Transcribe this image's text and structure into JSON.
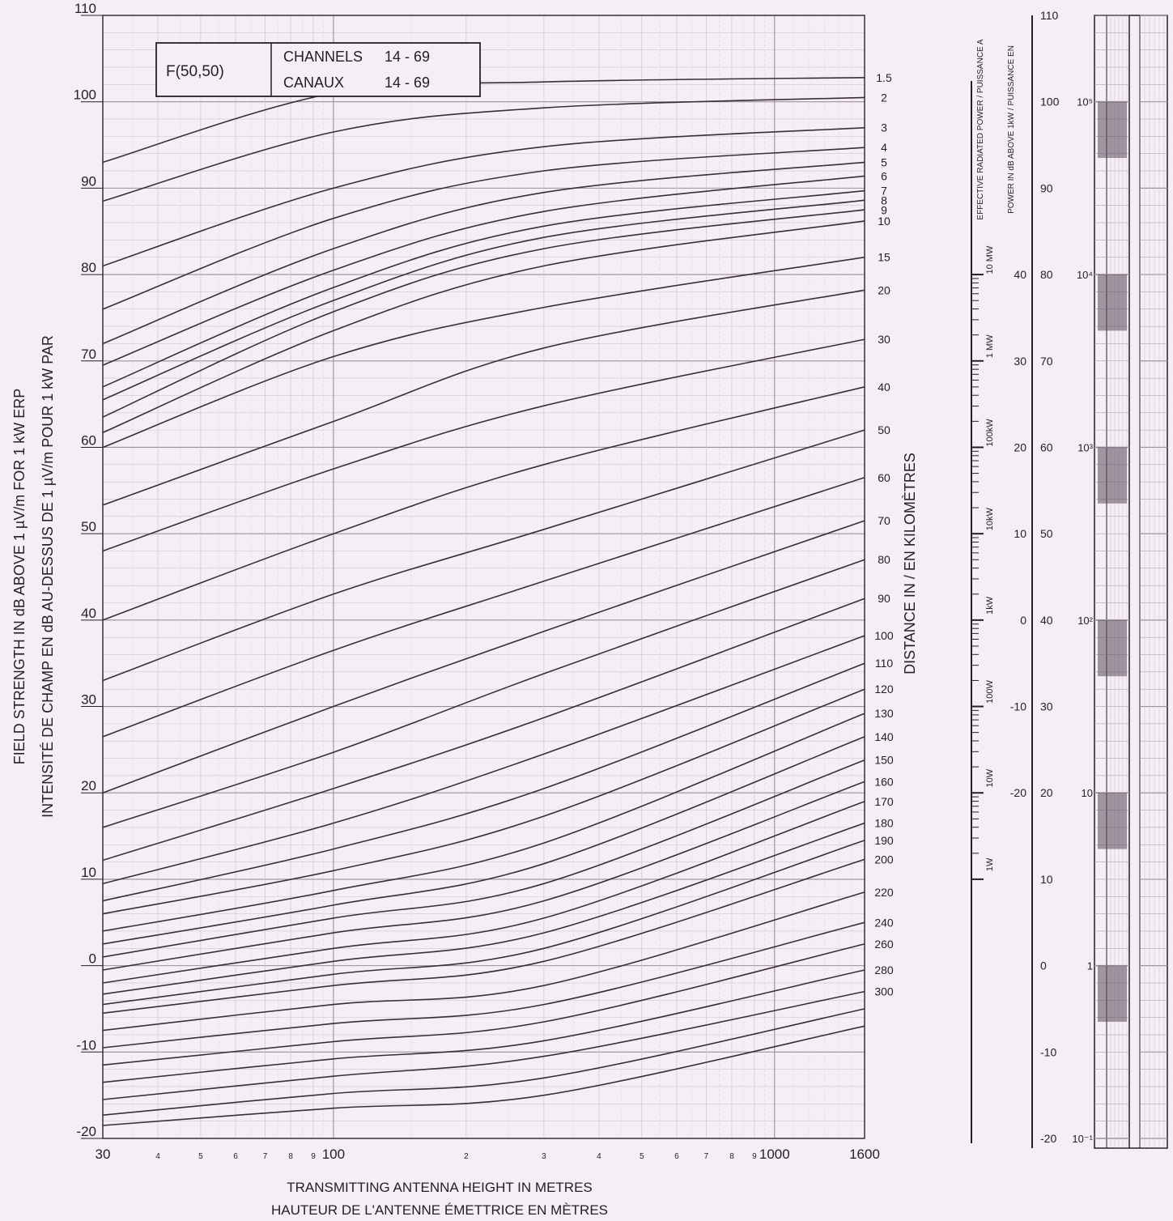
{
  "page_bg": "#f6eef6",
  "colors": {
    "grid_major": "#9b8f9b",
    "grid_minor": "#cfc3cf",
    "curve": "#3a2d3a",
    "ink": "#222222"
  },
  "chart_data": {
    "type": "line",
    "legend_box": {
      "label": "F(50,50)",
      "line1_name": "CHANNELS",
      "line1_value": "14 - 69",
      "line2_name": "CANAUX",
      "line2_value": "14 - 69",
      "placement": "top-left"
    },
    "ylabel_en": "FIELD STRENGTH IN dB ABOVE 1 µV/m FOR 1 kW ERP",
    "ylabel_fr": "INTENSITÉ DE CHAMP EN dB AU-DESSUS DE 1 µV/m POUR 1 kW PAR",
    "xlabel_en": "TRANSMITTING ANTENNA HEIGHT IN METRES",
    "xlabel_fr": "HAUTEUR DE L'ANTENNE ÉMETTRICE EN MÈTRES",
    "right_axis_label": "DISTANCE IN / EN KILOMÈTRES",
    "x_scale": "log",
    "xlim": [
      30,
      1600
    ],
    "ylim": [
      -20,
      110
    ],
    "grid": true,
    "y_ticks": [
      "110",
      "100",
      "90",
      "80",
      "70",
      "60",
      "50",
      "40",
      "30",
      "20",
      "10",
      "0",
      "-10",
      "-20"
    ],
    "x_tick_labels": [
      {
        "v": 30,
        "label": "30",
        "major": true
      },
      {
        "v": 40,
        "label": "4",
        "major": false
      },
      {
        "v": 50,
        "label": "5",
        "major": false
      },
      {
        "v": 60,
        "label": "6",
        "major": false
      },
      {
        "v": 70,
        "label": "7",
        "major": false
      },
      {
        "v": 80,
        "label": "8",
        "major": false
      },
      {
        "v": 90,
        "label": "9",
        "major": false
      },
      {
        "v": 100,
        "label": "100",
        "major": true
      },
      {
        "v": 200,
        "label": "2",
        "major": false
      },
      {
        "v": 300,
        "label": "3",
        "major": false
      },
      {
        "v": 400,
        "label": "4",
        "major": false
      },
      {
        "v": 500,
        "label": "5",
        "major": false
      },
      {
        "v": 600,
        "label": "6",
        "major": false
      },
      {
        "v": 700,
        "label": "7",
        "major": false
      },
      {
        "v": 800,
        "label": "8",
        "major": false
      },
      {
        "v": 900,
        "label": "9",
        "major": false
      },
      {
        "v": 1000,
        "label": "1000",
        "major": true
      },
      {
        "v": 1600,
        "label": "1600",
        "major": true
      }
    ],
    "series": [
      {
        "name": "1.5",
        "values": [
          [
            30,
            93
          ],
          [
            100,
            101
          ],
          [
            300,
            102.3
          ],
          [
            1600,
            102.8
          ]
        ]
      },
      {
        "name": "2",
        "values": [
          [
            30,
            88.5
          ],
          [
            100,
            96.5
          ],
          [
            300,
            99.3
          ],
          [
            1600,
            100.5
          ]
        ]
      },
      {
        "name": "3",
        "values": [
          [
            30,
            81
          ],
          [
            100,
            90
          ],
          [
            300,
            94.8
          ],
          [
            1600,
            97
          ]
        ]
      },
      {
        "name": "4",
        "values": [
          [
            30,
            76
          ],
          [
            100,
            86.5
          ],
          [
            300,
            92
          ],
          [
            1600,
            94.7
          ]
        ]
      },
      {
        "name": "5",
        "values": [
          [
            30,
            72
          ],
          [
            100,
            83
          ],
          [
            300,
            89.5
          ],
          [
            1600,
            93
          ]
        ]
      },
      {
        "name": "6",
        "values": [
          [
            30,
            69.5
          ],
          [
            100,
            80.5
          ],
          [
            300,
            87.3
          ],
          [
            1600,
            91.4
          ]
        ]
      },
      {
        "name": "7",
        "values": [
          [
            30,
            67
          ],
          [
            100,
            78.5
          ],
          [
            300,
            85.6
          ],
          [
            1600,
            89.7
          ]
        ]
      },
      {
        "name": "8",
        "values": [
          [
            30,
            65.5
          ],
          [
            100,
            77
          ],
          [
            300,
            84.3
          ],
          [
            1600,
            88.6
          ]
        ]
      },
      {
        "name": "9",
        "values": [
          [
            30,
            63.5
          ],
          [
            100,
            75.7
          ],
          [
            300,
            83
          ],
          [
            1600,
            87.5
          ]
        ]
      },
      {
        "name": "10",
        "values": [
          [
            30,
            61.7
          ],
          [
            100,
            73.5
          ],
          [
            300,
            81
          ],
          [
            1600,
            86.2
          ]
        ]
      },
      {
        "name": "15",
        "values": [
          [
            30,
            60
          ],
          [
            100,
            70.5
          ],
          [
            300,
            76.2
          ],
          [
            1600,
            82
          ]
        ]
      },
      {
        "name": "20",
        "values": [
          [
            30,
            53.3
          ],
          [
            100,
            63
          ],
          [
            300,
            71.5
          ],
          [
            1600,
            78.2
          ]
        ]
      },
      {
        "name": "30",
        "values": [
          [
            30,
            48
          ],
          [
            100,
            57.5
          ],
          [
            300,
            64.8
          ],
          [
            1600,
            72.5
          ]
        ]
      },
      {
        "name": "40",
        "values": [
          [
            30,
            40
          ],
          [
            100,
            50
          ],
          [
            300,
            58
          ],
          [
            1600,
            67
          ]
        ]
      },
      {
        "name": "50",
        "values": [
          [
            30,
            33
          ],
          [
            100,
            43
          ],
          [
            300,
            50.5
          ],
          [
            1600,
            62
          ]
        ]
      },
      {
        "name": "60",
        "values": [
          [
            30,
            26.5
          ],
          [
            100,
            36.5
          ],
          [
            300,
            44.5
          ],
          [
            1600,
            56.5
          ]
        ]
      },
      {
        "name": "70",
        "values": [
          [
            30,
            20
          ],
          [
            100,
            30
          ],
          [
            300,
            38.7
          ],
          [
            1600,
            51.5
          ]
        ]
      },
      {
        "name": "80",
        "values": [
          [
            30,
            16
          ],
          [
            100,
            24.7
          ],
          [
            300,
            33.8
          ],
          [
            1600,
            47
          ]
        ]
      },
      {
        "name": "90",
        "values": [
          [
            30,
            12.2
          ],
          [
            100,
            20.5
          ],
          [
            300,
            28.7
          ],
          [
            1600,
            42.5
          ]
        ]
      },
      {
        "name": "100",
        "values": [
          [
            30,
            9.5
          ],
          [
            100,
            16.5
          ],
          [
            300,
            24.5
          ],
          [
            1600,
            38.2
          ]
        ]
      },
      {
        "name": "110",
        "values": [
          [
            30,
            7.5
          ],
          [
            100,
            13.5
          ],
          [
            300,
            20.5
          ],
          [
            1600,
            35
          ]
        ]
      },
      {
        "name": "120",
        "values": [
          [
            30,
            6
          ],
          [
            100,
            11
          ],
          [
            300,
            17.3
          ],
          [
            1600,
            32
          ]
        ]
      },
      {
        "name": "130",
        "values": [
          [
            30,
            4
          ],
          [
            100,
            8.7
          ],
          [
            300,
            14.2
          ],
          [
            1600,
            29.2
          ]
        ]
      },
      {
        "name": "140",
        "values": [
          [
            30,
            2.5
          ],
          [
            100,
            7
          ],
          [
            300,
            11.8
          ],
          [
            1600,
            26.5
          ]
        ]
      },
      {
        "name": "150",
        "values": [
          [
            30,
            1
          ],
          [
            100,
            5.5
          ],
          [
            300,
            9.5
          ],
          [
            1600,
            23.8
          ]
        ]
      },
      {
        "name": "160",
        "values": [
          [
            30,
            -0.5
          ],
          [
            100,
            3.8
          ],
          [
            300,
            7.5
          ],
          [
            1600,
            21.3
          ]
        ]
      },
      {
        "name": "170",
        "values": [
          [
            30,
            -2
          ],
          [
            100,
            2
          ],
          [
            300,
            5.5
          ],
          [
            1600,
            19
          ]
        ]
      },
      {
        "name": "180",
        "values": [
          [
            30,
            -3.3
          ],
          [
            100,
            0.5
          ],
          [
            300,
            3.8
          ],
          [
            1600,
            16.5
          ]
        ]
      },
      {
        "name": "190",
        "values": [
          [
            30,
            -4.5
          ],
          [
            100,
            -1
          ],
          [
            300,
            2
          ],
          [
            1600,
            14.5
          ]
        ]
      },
      {
        "name": "200",
        "values": [
          [
            30,
            -5.5
          ],
          [
            100,
            -2.3
          ],
          [
            300,
            0.5
          ],
          [
            1600,
            12.3
          ]
        ]
      },
      {
        "name": "220",
        "values": [
          [
            30,
            -7.5
          ],
          [
            100,
            -4.5
          ],
          [
            300,
            -2.3
          ],
          [
            1600,
            8.5
          ]
        ]
      },
      {
        "name": "240",
        "values": [
          [
            30,
            -9.5
          ],
          [
            100,
            -6.7
          ],
          [
            300,
            -4.5
          ],
          [
            1600,
            5
          ]
        ]
      },
      {
        "name": "260",
        "values": [
          [
            30,
            -11.5
          ],
          [
            100,
            -8.8
          ],
          [
            300,
            -6.5
          ],
          [
            1600,
            2.5
          ]
        ]
      },
      {
        "name": "280",
        "values": [
          [
            30,
            -13.5
          ],
          [
            100,
            -10.8
          ],
          [
            300,
            -8.7
          ],
          [
            1600,
            -0.5
          ]
        ]
      },
      {
        "name": "300",
        "values": [
          [
            30,
            -15.5
          ],
          [
            100,
            -12.8
          ],
          [
            300,
            -10.5
          ],
          [
            1600,
            -3
          ]
        ]
      },
      {
        "name": "",
        "values": [
          [
            30,
            -17.3
          ],
          [
            100,
            -14.8
          ],
          [
            300,
            -13
          ],
          [
            1600,
            -5
          ]
        ]
      },
      {
        "name": "",
        "values": [
          [
            30,
            -18.5
          ],
          [
            100,
            -16.5
          ],
          [
            300,
            -15
          ],
          [
            1600,
            -7
          ]
        ]
      }
    ]
  },
  "side_scales": {
    "erp_label": "EFFECTIVE RADIATED POWER / PUISSANCE A",
    "db_label": "POWER IN dB ABOVE 1kW / PUISSANCE EN",
    "erp_ticks": [
      {
        "db": 40,
        "label": "10 MW"
      },
      {
        "db": 30,
        "label": "1 MW"
      },
      {
        "db": 20,
        "label": "100kW"
      },
      {
        "db": 10,
        "label": "10kW"
      },
      {
        "db": 0,
        "label": "1kW"
      },
      {
        "db": -10,
        "label": "100W"
      },
      {
        "db": -20,
        "label": "10W"
      },
      {
        "db": -30,
        "label": "1W"
      }
    ],
    "dbk_ticks": [
      "40",
      "30",
      "20",
      "10",
      "0",
      "-10",
      "-20"
    ],
    "field_ticks": [
      "110",
      "100",
      "90",
      "80",
      "70",
      "60",
      "50",
      "40",
      "30",
      "20",
      "10",
      "0",
      "-10",
      "-20"
    ],
    "uv_ticks": [
      {
        "v": 100,
        "label": "10⁵"
      },
      {
        "v": 80,
        "label": "10⁴"
      },
      {
        "v": 60,
        "label": "10³"
      },
      {
        "v": 40,
        "label": "10²"
      },
      {
        "v": 20,
        "label": "10"
      },
      {
        "v": 0,
        "label": "1"
      },
      {
        "v": -20,
        "label": "10⁻¹"
      }
    ]
  }
}
